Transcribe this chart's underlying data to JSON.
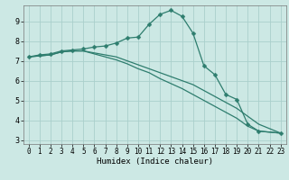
{
  "xlabel": "Humidex (Indice chaleur)",
  "bg_color": "#cce8e4",
  "grid_color": "#aacfcc",
  "line_color": "#2e7d6e",
  "xlim": [
    -0.5,
    23.5
  ],
  "ylim": [
    2.8,
    9.8
  ],
  "xticks": [
    0,
    1,
    2,
    3,
    4,
    5,
    6,
    7,
    8,
    9,
    10,
    11,
    12,
    13,
    14,
    15,
    16,
    17,
    18,
    19,
    20,
    21,
    22,
    23
  ],
  "yticks": [
    3,
    4,
    5,
    6,
    7,
    8,
    9
  ],
  "curve1_x": [
    0,
    1,
    2,
    3,
    4,
    5,
    6,
    7,
    8,
    9,
    10,
    11,
    12,
    13,
    14,
    15,
    16,
    17,
    18,
    19,
    20,
    21,
    23
  ],
  "curve1_y": [
    7.2,
    7.3,
    7.35,
    7.5,
    7.55,
    7.6,
    7.7,
    7.75,
    7.9,
    8.15,
    8.2,
    8.85,
    9.35,
    9.55,
    9.25,
    8.4,
    6.75,
    6.3,
    5.3,
    5.05,
    3.8,
    3.45,
    3.35
  ],
  "curve2_x": [
    0,
    1,
    2,
    3,
    4,
    5,
    6,
    7,
    8,
    9,
    10,
    11,
    12,
    13,
    14,
    15,
    16,
    17,
    18,
    19,
    20,
    21,
    23
  ],
  "curve2_y": [
    7.2,
    7.25,
    7.3,
    7.45,
    7.5,
    7.5,
    7.4,
    7.3,
    7.2,
    7.0,
    6.8,
    6.6,
    6.4,
    6.2,
    6.0,
    5.8,
    5.5,
    5.2,
    4.9,
    4.6,
    4.2,
    3.8,
    3.35
  ],
  "curve3_x": [
    0,
    1,
    2,
    3,
    4,
    5,
    6,
    7,
    8,
    9,
    10,
    11,
    12,
    13,
    14,
    15,
    16,
    17,
    18,
    19,
    20,
    21,
    23
  ],
  "curve3_y": [
    7.2,
    7.25,
    7.3,
    7.45,
    7.5,
    7.5,
    7.35,
    7.2,
    7.05,
    6.85,
    6.6,
    6.4,
    6.1,
    5.85,
    5.6,
    5.3,
    5.0,
    4.7,
    4.4,
    4.1,
    3.7,
    3.45,
    3.35
  ],
  "marker_size": 2.5,
  "line_width": 0.9,
  "xlabel_fontsize": 6.5,
  "tick_fontsize": 5.5
}
